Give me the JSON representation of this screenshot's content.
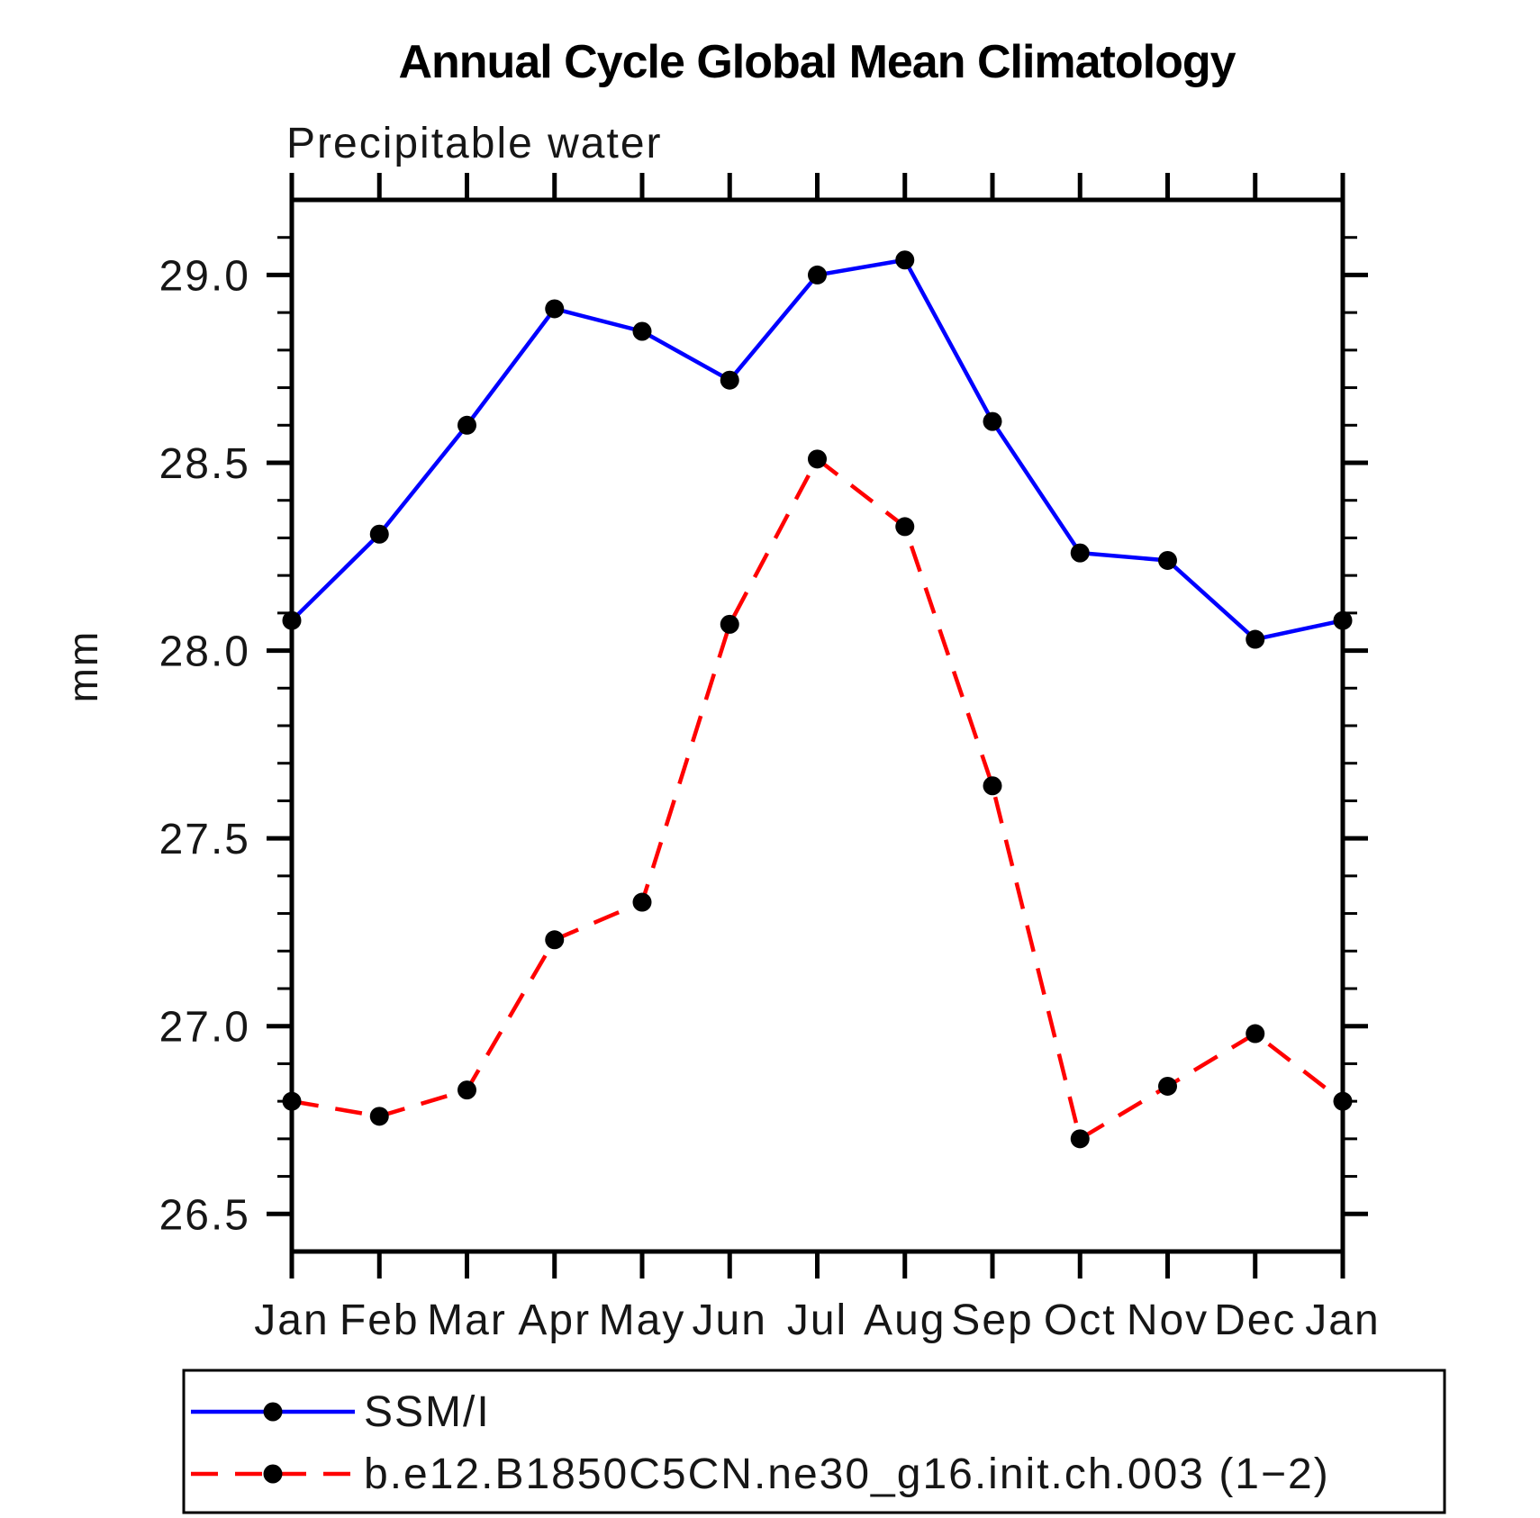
{
  "header": {
    "title": "Annual Cycle Global Mean Climatology",
    "subtitle": "Precipitable water"
  },
  "chart_data": {
    "type": "line",
    "title": "Annual Cycle Global Mean Climatology",
    "subtitle": "Precipitable water",
    "xlabel": "",
    "ylabel": "mm",
    "categories": [
      "Jan",
      "Feb",
      "Mar",
      "Apr",
      "May",
      "Jun",
      "Jul",
      "Aug",
      "Sep",
      "Oct",
      "Nov",
      "Dec",
      "Jan"
    ],
    "ylim": [
      26.4,
      29.2
    ],
    "ytick_labels": [
      "26.5",
      "27.0",
      "27.5",
      "28.0",
      "28.5",
      "29.0"
    ],
    "yticks_major": [
      26.5,
      27.0,
      27.5,
      28.0,
      28.5,
      29.0
    ],
    "minor_tick_interval": 0.1,
    "grid": false,
    "legend_position": "bottom-left-box",
    "axis_color": "#000000",
    "series": [
      {
        "name": "SSM/I",
        "color": "#0000ff",
        "line_style": "solid",
        "marker": "circle",
        "marker_color": "#000000",
        "values": [
          28.08,
          28.31,
          28.6,
          28.91,
          28.85,
          28.72,
          29.0,
          29.04,
          28.61,
          28.26,
          28.24,
          28.03,
          28.08
        ]
      },
      {
        "name": "b.e12.B1850C5CN.ne30_g16.init.ch.003 (1−2)",
        "color": "#ff0000",
        "line_style": "dashed",
        "marker": "circle",
        "marker_color": "#000000",
        "values": [
          26.8,
          26.76,
          26.83,
          27.23,
          27.33,
          28.07,
          28.51,
          28.33,
          27.64,
          26.7,
          26.84,
          26.98,
          26.8
        ]
      }
    ]
  }
}
